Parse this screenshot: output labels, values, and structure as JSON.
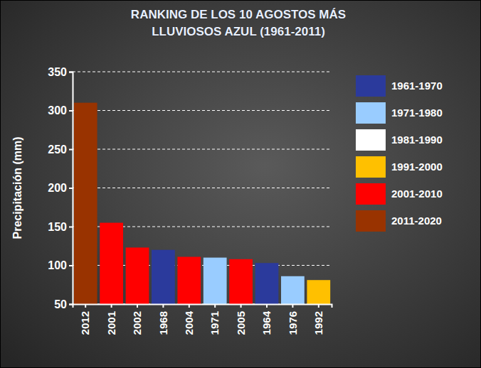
{
  "chart_data": {
    "type": "bar",
    "title": "RANKING DE LOS 10 AGOSTOS MÁS LLUVIOSOS AZUL (1961-2011)",
    "y_label": "Precipitación (mm)",
    "categories": [
      "2012",
      "2001",
      "2002",
      "1968",
      "2004",
      "1971",
      "2005",
      "1964",
      "1976",
      "1992"
    ],
    "series": [
      {
        "name": "1961-1970",
        "color": "#2b3a9c",
        "values": [
          null,
          null,
          null,
          120,
          null,
          null,
          null,
          103,
          null,
          null
        ]
      },
      {
        "name": "1971-1980",
        "color": "#99ccff",
        "values": [
          null,
          null,
          null,
          null,
          null,
          110,
          null,
          null,
          86,
          null
        ]
      },
      {
        "name": "1981-1990",
        "color": "#ffffff",
        "values": [
          null,
          null,
          null,
          null,
          null,
          null,
          null,
          null,
          null,
          null
        ]
      },
      {
        "name": "1991-2000",
        "color": "#ffc000",
        "values": [
          null,
          null,
          null,
          null,
          null,
          null,
          null,
          null,
          null,
          81
        ]
      },
      {
        "name": "2001-2010",
        "color": "#ff0000",
        "values": [
          null,
          155,
          123,
          null,
          111,
          null,
          108,
          null,
          null,
          null
        ]
      },
      {
        "name": "2011-2020",
        "color": "#993300",
        "values": [
          310,
          null,
          null,
          null,
          null,
          null,
          null,
          null,
          null,
          null
        ]
      }
    ],
    "ylim": [
      50,
      350
    ],
    "yticks": [
      50,
      100,
      150,
      200,
      250,
      300,
      350
    ],
    "grid": true,
    "legend": "right"
  }
}
